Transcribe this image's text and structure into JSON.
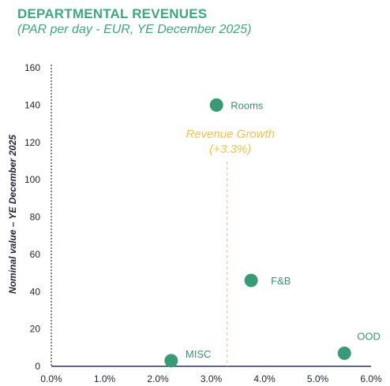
{
  "header": {
    "title": "DEPARTMENTAL REVENUES",
    "subtitle": "(PAR per day - EUR, YE December 2025)"
  },
  "chart_data": {
    "type": "scatter",
    "title": "DEPARTMENTAL REVENUES",
    "subtitle": "(PAR per day - EUR, YE December 2025)",
    "xlabel": "",
    "ylabel": "Nominal value – YE December 2025",
    "xlim": [
      0,
      6
    ],
    "ylim": [
      0,
      160
    ],
    "xticks": [
      "0.0%",
      "1.0%",
      "2.0%",
      "3.0%",
      "4.0%",
      "5.0%",
      "6.0%"
    ],
    "yticks": [
      "0",
      "20",
      "40",
      "60",
      "80",
      "100",
      "120",
      "140",
      "160"
    ],
    "grid": false,
    "points": [
      {
        "label": "Rooms",
        "x": 3.1,
        "y": 140
      },
      {
        "label": "F&B",
        "x": 3.75,
        "y": 46
      },
      {
        "label": "MISC",
        "x": 2.25,
        "y": 3
      },
      {
        "label": "OOD",
        "x": 5.5,
        "y": 7
      }
    ],
    "reference_line": {
      "x": 3.3,
      "label_line1": "Revenue Growth",
      "label_line2": "(+3.3%)"
    },
    "colors": {
      "point": "#3a9a76",
      "label": "#3d8f72",
      "title": "#3fa77e",
      "annotation": "#f2c14e",
      "axis": "#2a3060"
    }
  }
}
